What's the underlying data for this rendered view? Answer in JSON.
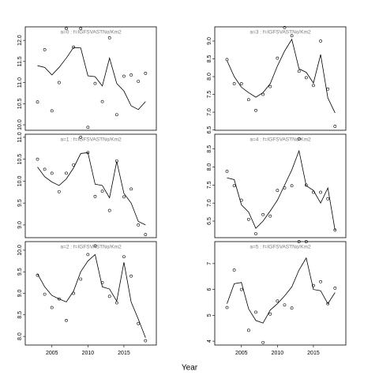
{
  "xlabel": "Year",
  "chart_data": [
    {
      "type": "scatter",
      "title": "a=0 : f=IGFSVASTNo/Km2",
      "x": [
        2003,
        2004,
        2005,
        2006,
        2007,
        2008,
        2009,
        2010,
        2011,
        2012,
        2013,
        2014,
        2015,
        2016,
        2017,
        2018
      ],
      "values": [
        10.54,
        11.78,
        10.33,
        11.0,
        12.28,
        11.84,
        12.28,
        9.94,
        10.98,
        10.55,
        12.06,
        10.24,
        11.15,
        11.18,
        11.03,
        11.22
      ],
      "line_values": [
        11.4,
        11.36,
        11.18,
        11.36,
        11.58,
        11.83,
        11.82,
        11.16,
        11.14,
        10.92,
        11.58,
        10.98,
        10.8,
        10.45,
        10.36,
        10.55
      ],
      "xlim": [
        2001.3,
        2019.5
      ],
      "ylim": [
        9.87,
        12.32
      ],
      "yticks": [
        {
          "value": 10,
          "label": "10.0"
        },
        10.5,
        {
          "value": 11,
          "label": "11.0"
        },
        11.5,
        {
          "value": 12,
          "label": "12.0"
        }
      ]
    },
    {
      "type": "scatter",
      "title": "a=1 : f=IGFSVASTNo/Km2",
      "x": [
        2003,
        2004,
        2005,
        2006,
        2007,
        2008,
        2009,
        2010,
        2011,
        2012,
        2013,
        2014,
        2015,
        2016,
        2017,
        2018
      ],
      "values": [
        10.5,
        10.27,
        10.18,
        9.76,
        10.18,
        10.37,
        11.0,
        10.65,
        9.65,
        9.77,
        9.33,
        10.46,
        9.64,
        9.82,
        9.0,
        8.78
      ],
      "line_values": [
        10.32,
        10.1,
        9.98,
        9.9,
        10.05,
        10.3,
        10.63,
        10.65,
        9.93,
        9.9,
        9.62,
        10.45,
        9.72,
        9.5,
        9.08,
        9.0
      ],
      "xlim": [
        2001.3,
        2019.5
      ],
      "ylim": [
        8.71,
        11.07
      ],
      "yticks": [
        {
          "value": 9,
          "label": "9.0"
        },
        9.5,
        {
          "value": 10,
          "label": "10.0"
        },
        10.5,
        {
          "value": 11,
          "label": "11.0"
        }
      ]
    },
    {
      "type": "scatter",
      "title": "a=2 : f=IGFSVASTNo/Km2",
      "x": [
        2003,
        2004,
        2005,
        2006,
        2007,
        2008,
        2009,
        2010,
        2011,
        2012,
        2013,
        2014,
        2015,
        2016,
        2017,
        2018
      ],
      "values": [
        9.42,
        8.98,
        8.67,
        8.87,
        8.37,
        9.0,
        9.33,
        9.9,
        10.1,
        9.25,
        8.93,
        8.78,
        9.85,
        9.4,
        8.3,
        7.9
      ],
      "line_values": [
        9.45,
        9.15,
        8.95,
        8.87,
        8.8,
        9.05,
        9.5,
        9.75,
        9.9,
        9.15,
        9.1,
        8.82,
        9.72,
        8.8,
        8.4,
        7.97
      ],
      "xlim": [
        2001.3,
        2019.5
      ],
      "ylim": [
        7.8,
        10.2
      ],
      "yticks": [
        {
          "value": 8,
          "label": "8.0"
        },
        8.5,
        {
          "value": 9,
          "label": "9.0"
        },
        9.5,
        {
          "value": 10,
          "label": "10.0"
        }
      ],
      "xticks": [
        2005,
        2010,
        2015
      ]
    },
    {
      "type": "scatter",
      "title": "a=3 : f=IGFSVASTNo/Km2",
      "x": [
        2003,
        2004,
        2005,
        2006,
        2007,
        2008,
        2009,
        2010,
        2011,
        2012,
        2013,
        2014,
        2015,
        2016,
        2017,
        2018
      ],
      "values": [
        8.48,
        7.8,
        7.8,
        7.35,
        7.05,
        7.5,
        7.72,
        8.52,
        9.38,
        9.15,
        8.15,
        7.97,
        7.75,
        9.0,
        7.65,
        6.6
      ],
      "line_values": [
        8.45,
        8.0,
        7.7,
        7.55,
        7.42,
        7.55,
        7.8,
        8.3,
        8.72,
        9.05,
        8.22,
        8.12,
        7.82,
        8.62,
        7.4,
        6.98
      ],
      "xlim": [
        2001.3,
        2019.5
      ],
      "ylim": [
        6.49,
        9.4
      ],
      "yticks": [
        6.5,
        {
          "value": 7,
          "label": "7.0"
        },
        7.5,
        {
          "value": 8,
          "label": "8.0"
        },
        8.5,
        {
          "value": 9,
          "label": "9.0"
        }
      ]
    },
    {
      "type": "scatter",
      "title": "a=4 : f=IGFSVASTNo/Km2",
      "x": [
        2003,
        2004,
        2005,
        2006,
        2007,
        2008,
        2009,
        2010,
        2011,
        2012,
        2013,
        2014,
        2015,
        2016,
        2017,
        2018
      ],
      "values": [
        7.88,
        7.48,
        7.08,
        6.55,
        6.15,
        6.68,
        6.64,
        7.35,
        7.42,
        7.48,
        8.78,
        7.5,
        7.3,
        7.3,
        7.12,
        6.25
      ],
      "line_values": [
        7.7,
        7.65,
        6.95,
        6.75,
        6.3,
        6.5,
        6.78,
        7.08,
        7.5,
        7.92,
        8.45,
        7.48,
        7.35,
        7.0,
        7.42,
        6.25
      ],
      "xlim": [
        2001.3,
        2019.5
      ],
      "ylim": [
        6.04,
        8.91
      ],
      "yticks": [
        6.5,
        {
          "value": 7,
          "label": "7.0"
        },
        7.5,
        {
          "value": 8,
          "label": "8.0"
        },
        8.5
      ]
    },
    {
      "type": "scatter",
      "title": "a=5 : f=IGFSVASTNo/Km2",
      "x": [
        2003,
        2004,
        2005,
        2006,
        2007,
        2008,
        2009,
        2010,
        2011,
        2012,
        2013,
        2014,
        2015,
        2016,
        2017,
        2018
      ],
      "values": [
        5.3,
        6.75,
        6.0,
        4.42,
        5.12,
        3.95,
        5.05,
        5.55,
        5.4,
        5.28,
        7.85,
        7.85,
        6.15,
        6.3,
        5.45,
        6.05
      ],
      "line_values": [
        5.45,
        6.22,
        6.27,
        5.25,
        4.8,
        4.7,
        5.2,
        5.45,
        5.75,
        6.1,
        6.75,
        7.22,
        6.0,
        5.95,
        5.45,
        5.88
      ],
      "xlim": [
        2001.3,
        2019.5
      ],
      "ylim": [
        3.85,
        7.85
      ],
      "yticks": [
        4,
        5,
        6,
        7
      ],
      "xticks": [
        2005,
        2010,
        2015
      ]
    }
  ]
}
